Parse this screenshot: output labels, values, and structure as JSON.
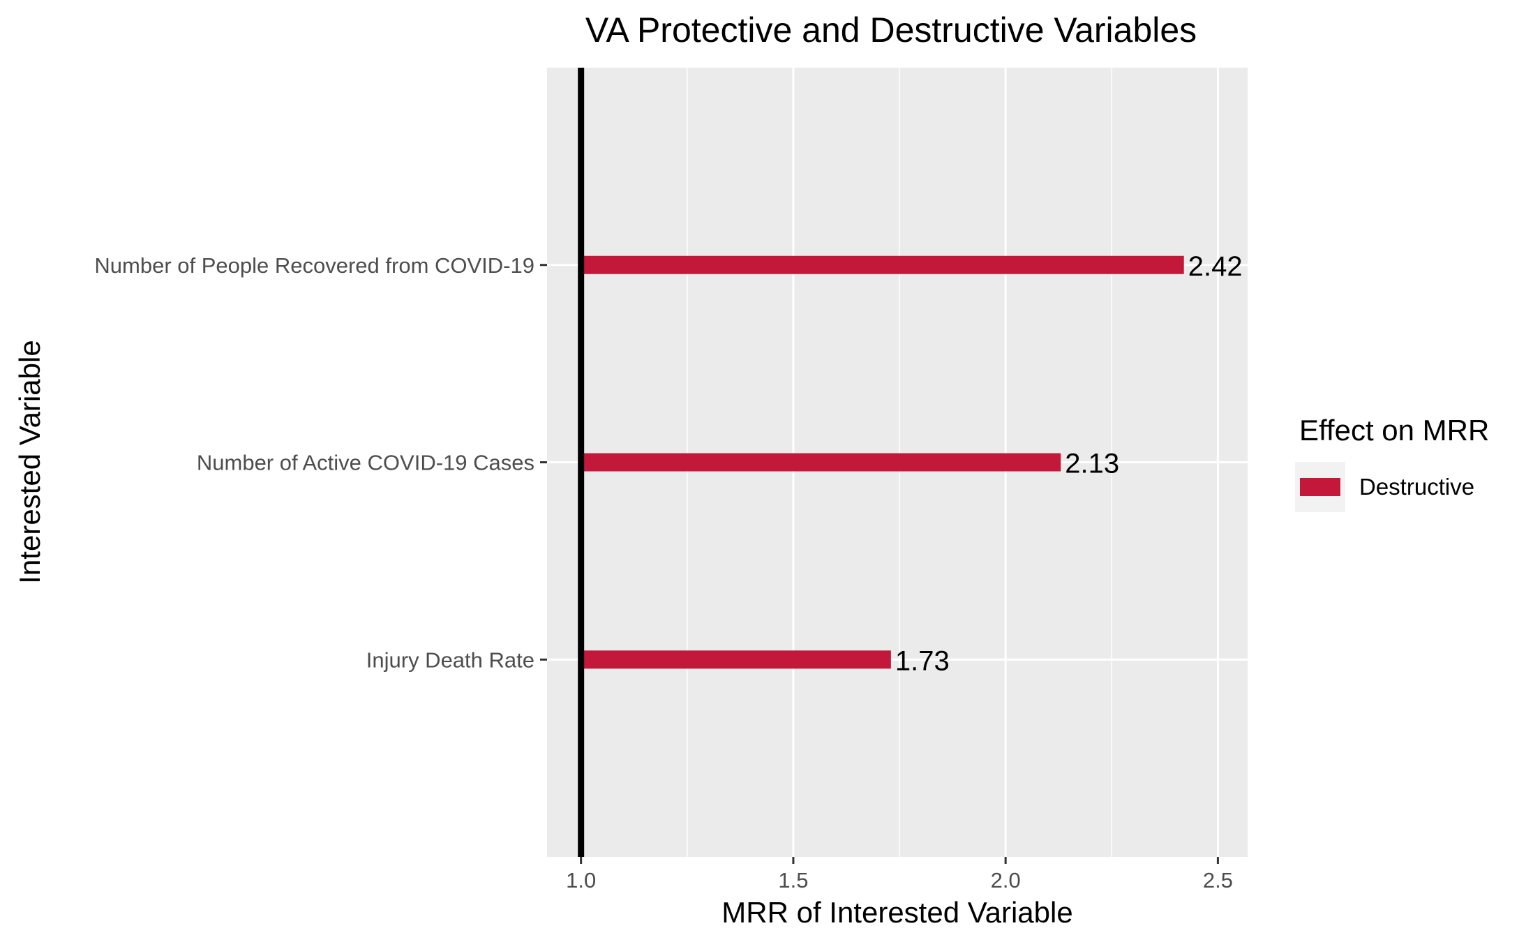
{
  "chart_data": {
    "type": "bar",
    "orientation": "horizontal",
    "title": "VA Protective and Destructive Variables",
    "xlabel": "MRR of Interested Variable",
    "ylabel": "Interested Variable",
    "categories": [
      "Number of People Recovered from COVID-19",
      "Number of Active COVID-19 Cases",
      "Injury Death Rate"
    ],
    "series": [
      {
        "name": "Destructive",
        "values": [
          2.42,
          2.13,
          1.73
        ],
        "color": "#C3183A"
      }
    ],
    "data_labels": [
      "2.42",
      "2.13",
      "1.73"
    ],
    "baseline": 1.0,
    "xlim": [
      0.92,
      2.57
    ],
    "xticks": [
      1.0,
      1.5,
      2.0,
      2.5
    ],
    "xtick_labels": [
      "1.0",
      "1.5",
      "2.0",
      "2.5"
    ],
    "grid": true,
    "legend": {
      "title": "Effect on MRR",
      "position": "right",
      "entries": [
        "Destructive"
      ]
    },
    "colors": {
      "panel": "#EBEBEB",
      "grid": "#FFFFFF",
      "baseline": "#000000",
      "bar": "#C3183A"
    }
  }
}
